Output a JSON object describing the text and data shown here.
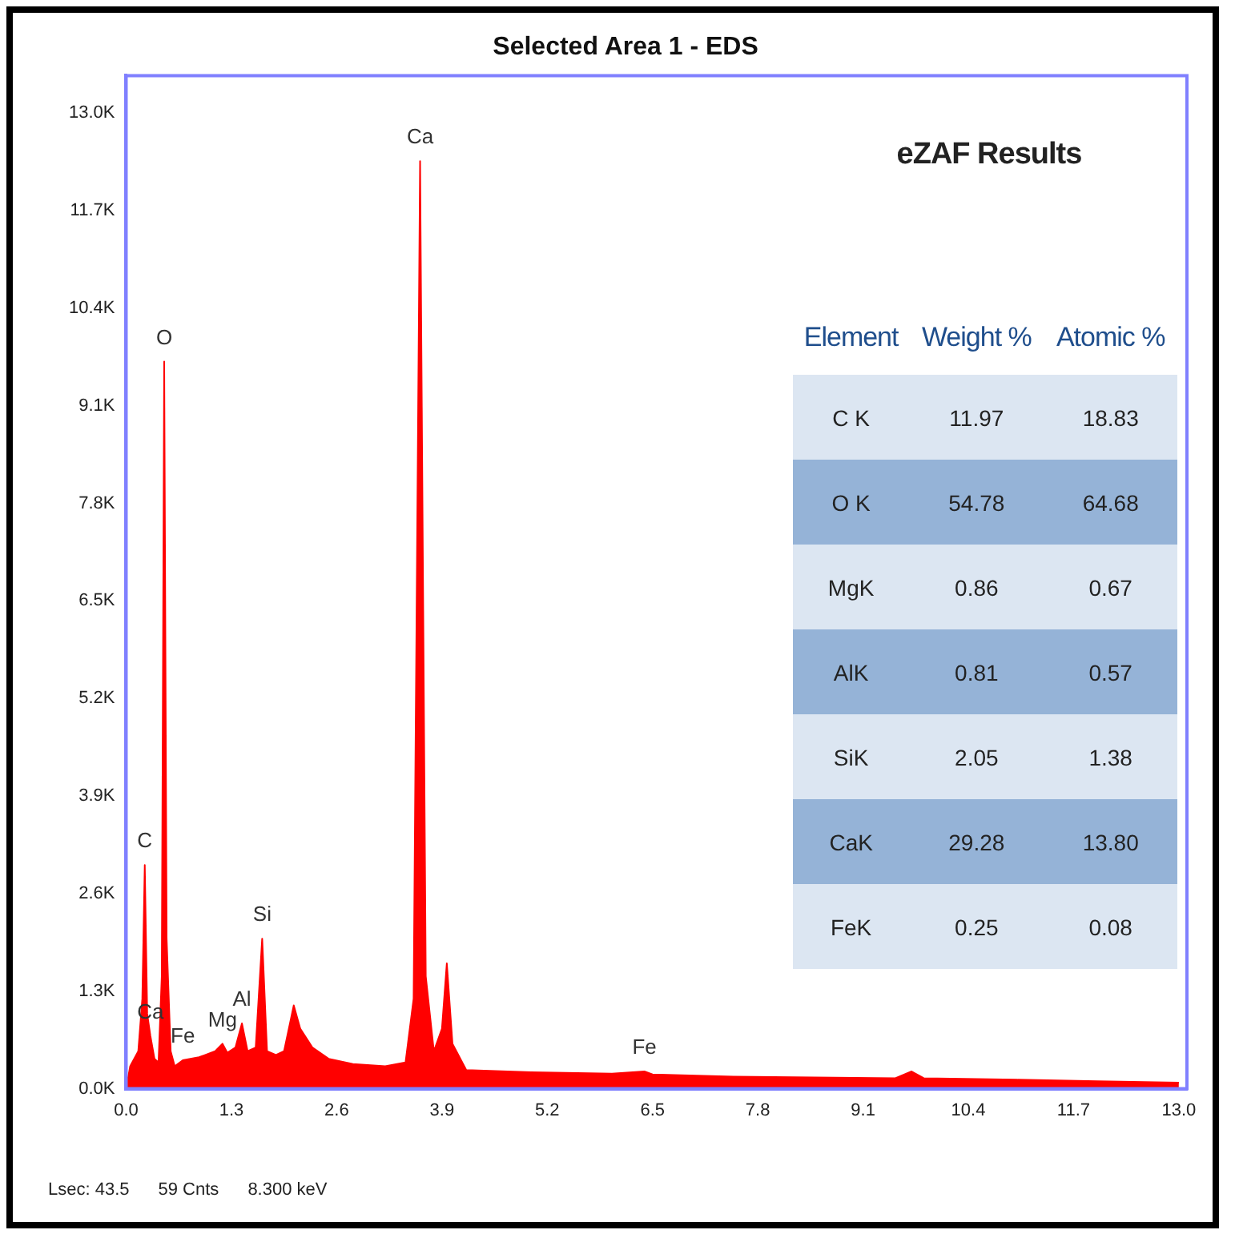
{
  "chart_data": [
    {
      "type": "area",
      "title": "Selected Area 1 - EDS",
      "x": [
        0,
        0.05,
        0.15,
        0.2,
        0.23,
        0.26,
        0.3,
        0.35,
        0.4,
        0.44,
        0.47,
        0.5,
        0.55,
        0.6,
        0.7,
        0.9,
        1.1,
        1.19,
        1.25,
        1.35,
        1.43,
        1.5,
        1.6,
        1.68,
        1.74,
        1.85,
        1.95,
        2.07,
        2.15,
        2.3,
        2.5,
        2.8,
        3.2,
        3.45,
        3.55,
        3.63,
        3.7,
        3.8,
        3.9,
        3.96,
        4.03,
        4.2,
        5,
        6,
        6.4,
        6.5,
        7.5,
        8.5,
        9.5,
        9.7,
        9.85,
        11,
        12,
        13
      ],
      "series": [
        {
          "color": "#ff0000",
          "values": [
            0,
            300,
            500,
            1200,
            2980,
            1000,
            700,
            400,
            350,
            1500,
            9690,
            2000,
            500,
            300,
            380,
            420,
            500,
            600,
            480,
            550,
            870,
            500,
            550,
            2000,
            500,
            450,
            500,
            1110,
            800,
            550,
            400,
            330,
            300,
            350,
            1200,
            12360,
            1500,
            500,
            800,
            1670,
            600,
            250,
            220,
            200,
            230,
            190,
            160,
            150,
            140,
            230,
            140,
            120,
            100,
            80
          ]
        }
      ],
      "xlim": [
        0,
        13.1
      ],
      "xticks": [
        {
          "value": 0,
          "label": "0.0"
        },
        1.3,
        2.6,
        3.9,
        5.2,
        6.5,
        7.8,
        9.1,
        10.4,
        11.7,
        {
          "value": 13,
          "label": "13.0"
        }
      ],
      "ylim": [
        0,
        13500
      ],
      "yticks": [
        {
          "value": 0,
          "label": "0.0K"
        },
        {
          "value": 1300,
          "label": "1.3K"
        },
        {
          "value": 2600,
          "label": "2.6K"
        },
        {
          "value": 3900,
          "label": "3.9K"
        },
        {
          "value": 5200,
          "label": "5.2K"
        },
        {
          "value": 6500,
          "label": "6.5K"
        },
        {
          "value": 7800,
          "label": "7.8K"
        },
        {
          "value": 9100,
          "label": "9.1K"
        },
        {
          "value": 10400,
          "label": "10.4K"
        },
        {
          "value": 11700,
          "label": "11.7K"
        },
        {
          "value": 13000,
          "label": "13.0K"
        }
      ],
      "grid": false,
      "legend": false,
      "annotations": [
        {
          "text": "C",
          "x": 0.23,
          "y": 2980
        },
        {
          "text": "O",
          "x": 0.47,
          "y": 9690
        },
        {
          "text": "Ca",
          "x": 3.63,
          "y": 12360
        },
        {
          "text": "Mg",
          "x": 1.19,
          "y": 600
        },
        {
          "text": "Si",
          "x": 1.68,
          "y": 2000
        },
        {
          "text": "Al",
          "x": 1.43,
          "y": 870
        },
        {
          "text": "Ca",
          "x": 0.3,
          "y": 700
        },
        {
          "text": "Fe",
          "x": 0.7,
          "y": 380
        },
        {
          "text": "Fe",
          "x": 6.4,
          "y": 230
        },
        "Lsec: 43.5",
        "59 Cnts",
        "8.300 keV"
      ]
    },
    {
      "type": "other",
      "title": "eZAF Results",
      "categories": [
        "Element",
        "Weight %",
        "Atomic %"
      ],
      "annotations": [
        "C K",
        "11.97",
        "18.83",
        "O K",
        "54.78",
        "64.68",
        "MgK",
        "0.86",
        "0.67",
        "AlK",
        "0.81",
        "0.57",
        "SiK",
        "2.05",
        "1.38",
        "CaK",
        "29.28",
        "13.80",
        "FeK",
        "0.25",
        "0.08"
      ]
    }
  ]
}
